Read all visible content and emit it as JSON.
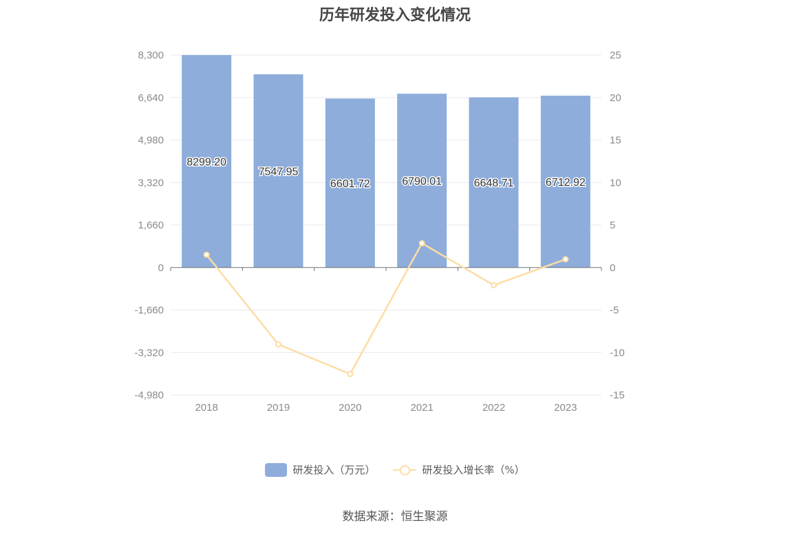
{
  "title": "历年研发投入变化情况",
  "source": "数据来源：恒生聚源",
  "legend": {
    "bar_label": "研发投入（万元）",
    "line_label": "研发投入增长率（%）"
  },
  "colors": {
    "bar": "#8eaddb",
    "line": "#fcdda3",
    "grid": "#e6e9f2",
    "axis": "#6e7079"
  },
  "chart_data": {
    "type": "bar",
    "categories": [
      "2018",
      "2019",
      "2020",
      "2021",
      "2022",
      "2023"
    ],
    "series": [
      {
        "name": "研发投入（万元）",
        "type": "bar",
        "axis": "left",
        "values": [
          8299.2,
          7547.95,
          6601.72,
          6790.01,
          6648.71,
          6712.92
        ],
        "labels": [
          "8299.20",
          "7547.95",
          "6601.72",
          "6790.01",
          "6648.71",
          "6712.92"
        ]
      },
      {
        "name": "研发投入增长率（%）",
        "type": "line",
        "axis": "right",
        "values": [
          1.5,
          -9.05,
          -12.53,
          2.85,
          -2.08,
          0.97
        ]
      }
    ],
    "y_left": {
      "ylim": [
        -4980,
        8300
      ],
      "ticks": [
        8300,
        6640,
        4980,
        3320,
        1660,
        0,
        -1660,
        -3320,
        -4980
      ],
      "tick_labels": [
        "8,300",
        "6,640",
        "4,980",
        "3,320",
        "1,660",
        "0",
        "-1,660",
        "-3,320",
        "-4,980"
      ]
    },
    "y_right": {
      "ylim": [
        -15,
        25
      ],
      "ticks": [
        25,
        20,
        15,
        10,
        5,
        0,
        -5,
        -10,
        -15
      ],
      "tick_labels": [
        "25",
        "20",
        "15",
        "10",
        "5",
        "0",
        "-5",
        "-10",
        "-15"
      ]
    },
    "grid": true,
    "legend_position": "bottom-center"
  }
}
